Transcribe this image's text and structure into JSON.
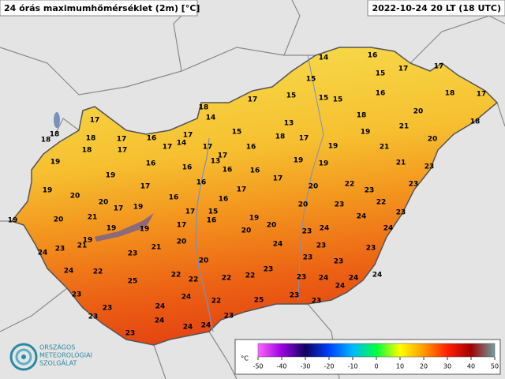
{
  "title": "24 órás maximumhőmérséklet (2m) [°C]",
  "datetime": "2022-10-24 20 LT (18 UTC)",
  "logo": {
    "lines": [
      "ORSZÁGOS",
      "METEOROLÓGIAI",
      "SZOLGÁLAT"
    ]
  },
  "legend": {
    "unit": "°C",
    "range": [
      -50,
      50
    ],
    "ticks": [
      -50,
      -40,
      -30,
      -20,
      -10,
      0,
      10,
      20,
      30,
      40,
      50
    ],
    "colors": [
      "#ff66ff",
      "#9a00e0",
      "#100060",
      "#0040ff",
      "#00b8ff",
      "#00ff40",
      "#ffff00",
      "#ff9900",
      "#ff2000",
      "#a00000",
      "#70a0a0"
    ]
  },
  "stations": [
    14,
    16,
    17,
    17,
    15,
    15,
    17,
    18,
    17,
    15,
    15,
    15,
    16,
    18,
    14,
    17,
    20,
    18,
    18,
    13,
    15,
    21,
    18,
    18,
    18,
    17,
    16,
    17,
    19,
    18,
    17,
    20,
    17,
    14,
    18,
    17,
    17,
    16,
    19,
    21,
    17,
    19,
    16,
    13,
    16,
    16,
    16,
    19,
    19,
    21,
    23,
    19,
    16,
    17,
    22,
    19,
    17,
    17,
    20,
    23,
    23,
    20,
    20,
    16,
    16,
    22,
    20,
    23,
    17,
    19,
    17,
    21,
    20,
    15,
    16,
    19,
    24,
    23,
    17,
    20,
    20,
    24,
    23,
    19,
    19,
    24,
    19,
    19,
    21,
    23,
    20,
    24,
    23,
    23,
    24,
    21,
    23,
    23,
    23,
    20,
    24,
    23,
    22,
    22,
    22,
    22,
    24,
    24,
    25,
    22,
    23,
    24,
    23,
    24,
    24,
    23,
    22,
    25,
    23,
    23,
    24,
    23,
    23,
    24,
    24,
    24,
    23
  ]
}
